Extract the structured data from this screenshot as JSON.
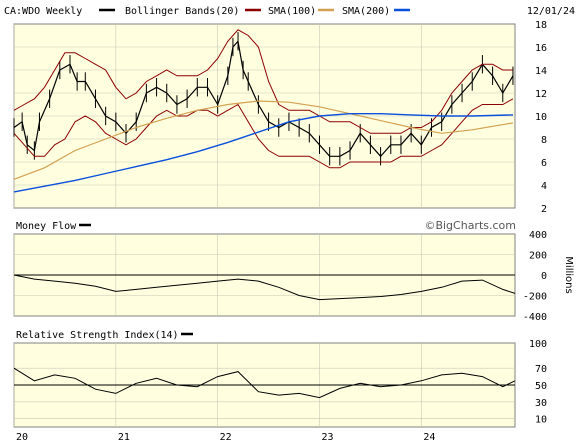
{
  "header": {
    "symbol_label": "CA:WDO Weekly",
    "bollinger_label": "Bollinger Bands(20)",
    "sma100_label": "SMA(100)",
    "sma200_label": "SMA(200)",
    "date": "12/01/24"
  },
  "colors": {
    "background": "#ffffff",
    "panel": "#ffffe0",
    "price": "#000000",
    "bollinger": "#8b0000",
    "sma100": "#d2a050",
    "sma200": "#0a50dc",
    "legend_black": "#000000",
    "legend_red": "#8b0000",
    "legend_orange": "#d2a050",
    "legend_blue": "#0a50dc"
  },
  "chart_data": [
    {
      "type": "line",
      "title": "CA:WDO Weekly",
      "ylim": [
        2,
        18
      ],
      "yticks": [
        "2",
        "4",
        "6",
        "8",
        "10",
        "12",
        "14",
        "16",
        "18"
      ],
      "x_tick_labels": [
        "20",
        "21",
        "22",
        "23",
        "24"
      ],
      "x_ticks": [
        2020,
        2021,
        2022,
        2023,
        2024
      ],
      "xlim": [
        2020.0,
        2024.92
      ],
      "grid": true,
      "series": [
        {
          "name": "CA:WDO Weekly",
          "x": [
            2020.0,
            2020.08,
            2020.13,
            2020.2,
            2020.25,
            2020.35,
            2020.45,
            2020.55,
            2020.62,
            2020.7,
            2020.8,
            2020.9,
            2021.0,
            2021.1,
            2021.2,
            2021.3,
            2021.4,
            2021.5,
            2021.6,
            2021.7,
            2021.8,
            2021.9,
            2022.0,
            2022.1,
            2022.15,
            2022.2,
            2022.25,
            2022.3,
            2022.4,
            2022.5,
            2022.6,
            2022.7,
            2022.8,
            2022.9,
            2023.0,
            2023.1,
            2023.2,
            2023.3,
            2023.4,
            2023.5,
            2023.6,
            2023.7,
            2023.8,
            2023.9,
            2024.0,
            2024.1,
            2024.2,
            2024.3,
            2024.4,
            2024.5,
            2024.6,
            2024.7,
            2024.8,
            2024.9
          ],
          "values": [
            9.0,
            9.5,
            7.5,
            7.0,
            9.5,
            11.5,
            14.0,
            14.5,
            13.0,
            13.0,
            11.5,
            10.0,
            9.5,
            8.5,
            9.5,
            12.0,
            12.5,
            12.0,
            11.0,
            11.5,
            12.5,
            12.5,
            11.0,
            13.5,
            16.0,
            16.5,
            14.0,
            13.0,
            11.0,
            9.5,
            9.0,
            9.5,
            9.0,
            8.5,
            7.5,
            6.5,
            6.5,
            7.0,
            8.5,
            7.5,
            6.5,
            7.5,
            7.5,
            8.5,
            7.5,
            9.0,
            9.5,
            11.0,
            12.0,
            13.0,
            14.5,
            13.5,
            12.0,
            13.5
          ]
        },
        {
          "name": "Bollinger Bands(20)",
          "role": "upper",
          "x": [
            2020.0,
            2020.1,
            2020.2,
            2020.3,
            2020.4,
            2020.5,
            2020.6,
            2020.7,
            2020.8,
            2020.9,
            2021.0,
            2021.1,
            2021.2,
            2021.3,
            2021.4,
            2021.5,
            2021.6,
            2021.7,
            2021.8,
            2021.9,
            2022.0,
            2022.1,
            2022.2,
            2022.3,
            2022.4,
            2022.5,
            2022.6,
            2022.7,
            2022.8,
            2022.9,
            2023.0,
            2023.1,
            2023.2,
            2023.3,
            2023.4,
            2023.5,
            2023.6,
            2023.7,
            2023.8,
            2023.9,
            2024.0,
            2024.1,
            2024.2,
            2024.3,
            2024.4,
            2024.5,
            2024.6,
            2024.7,
            2024.8,
            2024.9
          ],
          "values": [
            10.5,
            11.0,
            11.5,
            12.5,
            14.0,
            15.5,
            15.5,
            15.0,
            14.5,
            14.0,
            12.5,
            11.5,
            12.0,
            13.0,
            13.5,
            14.0,
            13.5,
            13.5,
            13.5,
            14.0,
            15.0,
            16.5,
            17.5,
            17.0,
            16.0,
            13.0,
            11.0,
            10.5,
            10.5,
            10.5,
            10.0,
            9.5,
            9.5,
            9.5,
            9.0,
            8.5,
            8.5,
            8.5,
            8.5,
            9.0,
            9.0,
            9.5,
            10.5,
            12.0,
            13.0,
            14.0,
            14.5,
            14.5,
            14.0,
            14.0
          ]
        },
        {
          "name": "Bollinger Bands(20)",
          "role": "lower",
          "x": [
            2020.0,
            2020.1,
            2020.2,
            2020.3,
            2020.4,
            2020.5,
            2020.6,
            2020.7,
            2020.8,
            2020.9,
            2021.0,
            2021.1,
            2021.2,
            2021.3,
            2021.4,
            2021.5,
            2021.6,
            2021.7,
            2021.8,
            2021.9,
            2022.0,
            2022.1,
            2022.2,
            2022.3,
            2022.4,
            2022.5,
            2022.6,
            2022.7,
            2022.8,
            2022.9,
            2023.0,
            2023.1,
            2023.2,
            2023.3,
            2023.4,
            2023.5,
            2023.6,
            2023.7,
            2023.8,
            2023.9,
            2024.0,
            2024.1,
            2024.2,
            2024.3,
            2024.4,
            2024.5,
            2024.6,
            2024.7,
            2024.8,
            2024.9
          ],
          "values": [
            8.5,
            7.5,
            6.5,
            6.5,
            7.5,
            8.0,
            9.5,
            10.0,
            9.5,
            8.5,
            8.0,
            7.5,
            8.0,
            9.0,
            10.0,
            10.5,
            10.0,
            10.0,
            10.5,
            10.5,
            10.0,
            10.5,
            11.0,
            9.5,
            8.0,
            7.0,
            6.5,
            6.5,
            6.5,
            6.5,
            6.0,
            5.5,
            5.5,
            6.0,
            6.0,
            6.0,
            6.0,
            6.0,
            6.5,
            6.5,
            6.5,
            7.0,
            7.5,
            8.5,
            9.5,
            10.5,
            11.0,
            11.0,
            11.0,
            11.5
          ]
        },
        {
          "name": "SMA(100)",
          "x": [
            2020.0,
            2020.3,
            2020.6,
            2020.9,
            2021.2,
            2021.5,
            2021.8,
            2022.1,
            2022.4,
            2022.7,
            2023.0,
            2023.3,
            2023.6,
            2023.9,
            2024.2,
            2024.5,
            2024.9
          ],
          "values": [
            4.5,
            5.5,
            7.0,
            8.0,
            9.0,
            9.8,
            10.5,
            11.0,
            11.3,
            11.2,
            10.8,
            10.2,
            9.6,
            9.0,
            8.5,
            8.8,
            9.4
          ]
        },
        {
          "name": "SMA(200)",
          "x": [
            2020.0,
            2020.3,
            2020.6,
            2020.9,
            2021.2,
            2021.5,
            2021.8,
            2022.1,
            2022.4,
            2022.7,
            2023.0,
            2023.3,
            2023.6,
            2023.9,
            2024.2,
            2024.5,
            2024.9
          ],
          "values": [
            3.4,
            3.9,
            4.4,
            5.0,
            5.6,
            6.2,
            6.9,
            7.7,
            8.6,
            9.5,
            10.0,
            10.2,
            10.2,
            10.1,
            10.0,
            10.0,
            10.1
          ]
        }
      ]
    },
    {
      "type": "line",
      "title": "Money Flow",
      "ylim": [
        -400,
        400
      ],
      "yticks": [
        "400",
        "200",
        "0",
        "-200",
        "-400"
      ],
      "unit": "Millions",
      "reference_line": 0,
      "series": [
        {
          "name": "Money Flow",
          "x": [
            2020.0,
            2020.2,
            2020.4,
            2020.6,
            2020.8,
            2021.0,
            2021.2,
            2021.4,
            2021.6,
            2021.8,
            2022.0,
            2022.2,
            2022.4,
            2022.6,
            2022.8,
            2023.0,
            2023.2,
            2023.4,
            2023.6,
            2023.8,
            2024.0,
            2024.2,
            2024.4,
            2024.6,
            2024.8,
            2024.92
          ],
          "values": [
            0,
            -40,
            -60,
            -80,
            -110,
            -160,
            -140,
            -120,
            -100,
            -80,
            -60,
            -40,
            -60,
            -120,
            -200,
            -240,
            -230,
            -220,
            -210,
            -190,
            -160,
            -120,
            -60,
            -50,
            -140,
            -180
          ]
        }
      ]
    },
    {
      "type": "line",
      "title": "Relative Strength Index(14)",
      "ylim": [
        0,
        100
      ],
      "yticks": [
        "100",
        "70",
        "50",
        "30",
        "10"
      ],
      "reference_line": 50,
      "series": [
        {
          "name": "Relative Strength Index(14)",
          "x": [
            2020.0,
            2020.2,
            2020.4,
            2020.6,
            2020.8,
            2021.0,
            2021.2,
            2021.4,
            2021.6,
            2021.8,
            2022.0,
            2022.2,
            2022.4,
            2022.6,
            2022.8,
            2023.0,
            2023.2,
            2023.4,
            2023.6,
            2023.8,
            2024.0,
            2024.2,
            2024.4,
            2024.6,
            2024.8,
            2024.92
          ],
          "values": [
            70,
            55,
            62,
            58,
            45,
            40,
            52,
            58,
            50,
            48,
            60,
            66,
            42,
            38,
            40,
            35,
            46,
            52,
            48,
            50,
            55,
            62,
            64,
            60,
            48,
            55
          ]
        }
      ]
    }
  ],
  "labels": {
    "money_flow": "Money Flow",
    "money_flow_unit": "Millions",
    "watermark": "©BigCharts.com",
    "rsi": "Relative Strength Index(14)"
  }
}
